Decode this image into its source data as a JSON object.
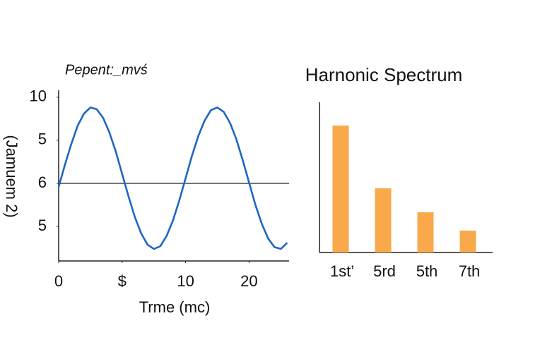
{
  "chart_data": [
    {
      "type": "line",
      "title": "Pepent:_mvś",
      "y_label": "(Jamuem 2)",
      "x_label": "Trme (mc)",
      "x": [
        -10,
        -9,
        -8,
        -7,
        -6,
        -5,
        -4,
        -3,
        -2,
        -1,
        0,
        1,
        2,
        3,
        4,
        5,
        6,
        7,
        8,
        9,
        10,
        11,
        12,
        13,
        14,
        15,
        16,
        17,
        18,
        19,
        20,
        21,
        22,
        23,
        24,
        25,
        26
      ],
      "series": [
        {
          "name": null,
          "color": "#1f66c2",
          "values": [
            -0.4,
            2.2,
            4.6,
            6.7,
            8.1,
            8.8,
            8.6,
            7.6,
            5.9,
            3.7,
            1.1,
            -1.5,
            -3.9,
            -5.8,
            -7.1,
            -7.6,
            -7.3,
            -6.1,
            -4.3,
            -2.0,
            0.6,
            3.2,
            5.5,
            7.3,
            8.5,
            8.8,
            8.3,
            7.0,
            5.1,
            2.7,
            0.1,
            -2.5,
            -4.7,
            -6.4,
            -7.4,
            -7.6,
            -6.9
          ]
        }
      ],
      "hline": 0,
      "xlim": [
        -10,
        26.3
      ],
      "xticks": [
        {
          "value": -10,
          "label": "0"
        },
        {
          "value": 0,
          "label": "$"
        },
        10,
        20
      ],
      "ylim": [
        -9,
        10.8
      ],
      "yticks": [
        10,
        5,
        {
          "value": 0,
          "label": "6"
        },
        {
          "value": -5,
          "label": "5"
        }
      ]
    },
    {
      "type": "bar",
      "title": "Harnonic Spectrum",
      "categories": [
        "1st’",
        "5rd",
        "5th",
        "7th"
      ],
      "values": [
        8.45,
        4.27,
        2.68,
        1.46
      ],
      "color": "#f9a94b",
      "ylim": [
        0,
        10
      ]
    }
  ]
}
